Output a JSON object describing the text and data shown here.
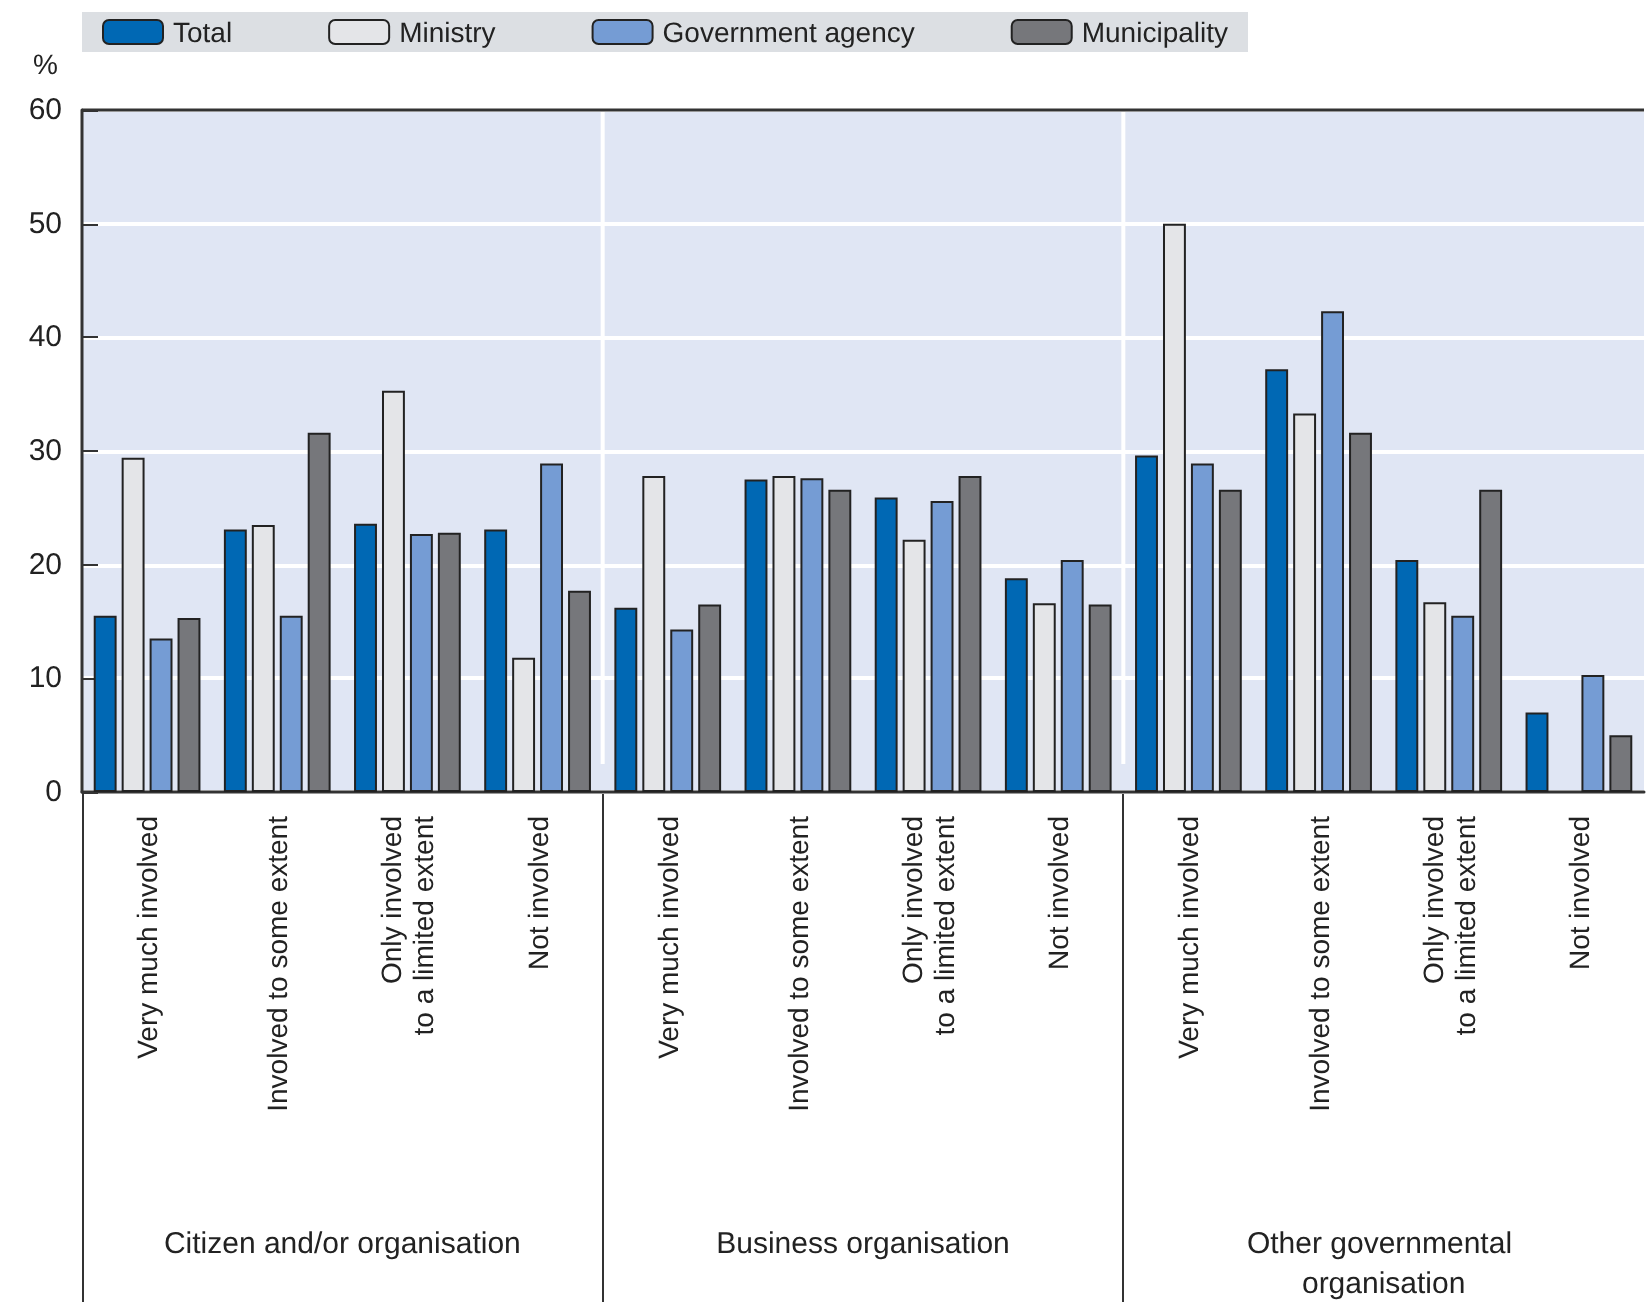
{
  "chart_data": {
    "type": "bar",
    "ylabel": "%",
    "categories": [
      "Very much involved",
      "Involved to some extent",
      "Only involved\nto a limited extent",
      "Not involved",
      "Very much involved",
      "Involved to some extent",
      "Only involved\nto a limited extent",
      "Not involved",
      "Very much involved",
      "Involved to some extent",
      "Only involved\nto a limited extent",
      "Not involved"
    ],
    "series": [
      {
        "name": "Total",
        "color": "#0068b4",
        "values": [
          15.5,
          23.1,
          23.6,
          23.1,
          16.2,
          27.5,
          25.9,
          18.8,
          29.6,
          37.2,
          20.4,
          7.0
        ]
      },
      {
        "name": "Ministry",
        "color": "#e4e5e8",
        "values": [
          29.4,
          23.5,
          35.3,
          11.8,
          27.8,
          27.8,
          22.2,
          16.6,
          50.0,
          33.3,
          16.7,
          null
        ]
      },
      {
        "name": "Government agency",
        "color": "#759cd4",
        "values": [
          13.5,
          15.5,
          22.7,
          28.9,
          14.3,
          27.6,
          25.6,
          20.4,
          28.9,
          42.3,
          15.5,
          10.3
        ]
      },
      {
        "name": "Municipality",
        "color": "#76777b",
        "values": [
          15.3,
          31.6,
          22.8,
          17.7,
          16.5,
          26.6,
          27.8,
          16.5,
          26.6,
          31.6,
          26.6,
          5.0
        ]
      }
    ],
    "annotations": [
      "Citizen and/or organisation",
      "Business organisation",
      "Other governmental organisation"
    ],
    "ylim": [
      0,
      60
    ],
    "yticks": [
      0,
      10,
      20,
      30,
      40,
      50,
      60
    ],
    "grid": "y",
    "legend": "top"
  }
}
